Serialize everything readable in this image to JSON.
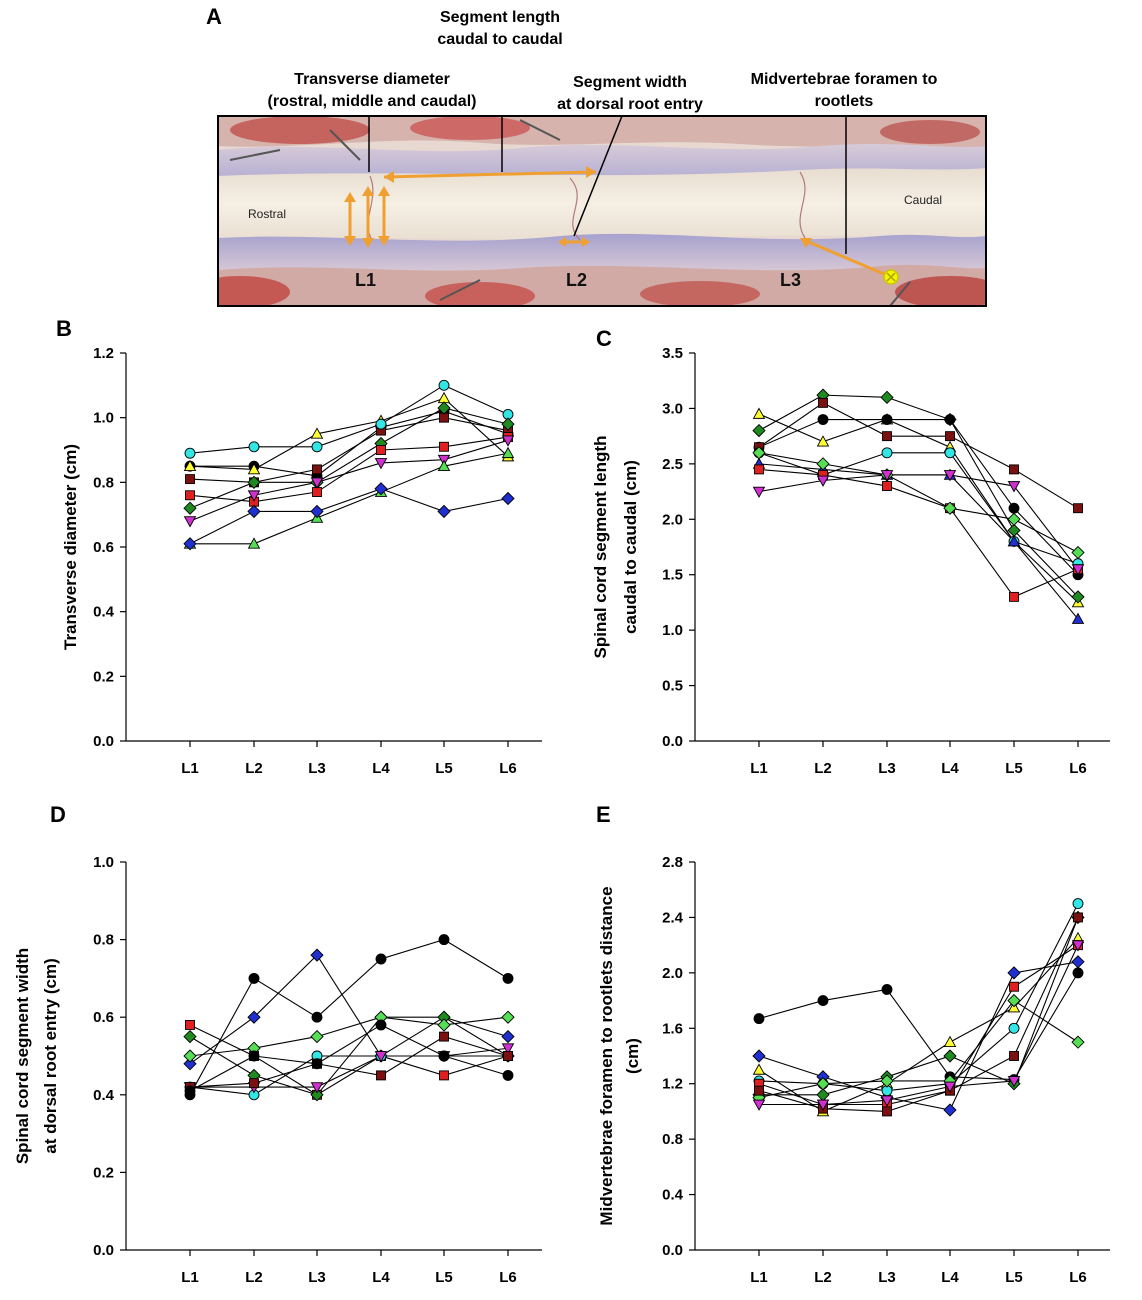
{
  "panel_a": {
    "letter": "A",
    "annotations": [
      {
        "lines": [
          "Transverse diameter",
          "(rostral, middle and caudal)"
        ]
      },
      {
        "lines": [
          "Segment length",
          "caudal to caudal"
        ]
      },
      {
        "lines": [
          "Segment width",
          "at dorsal root entry"
        ]
      },
      {
        "lines": [
          "Midvertebrae foramen to",
          "rootlets"
        ]
      }
    ],
    "photo_labels": {
      "rostral": "Rostral",
      "caudal": "Caudal"
    },
    "levels": [
      "L1",
      "L2",
      "L3"
    ],
    "colors": {
      "arrow": "#f0a030",
      "marker": "#f4f400",
      "cord": "#f2eadc",
      "dura": "#b9b4d8",
      "tissue": "#c23a3a"
    }
  },
  "chart_data": [
    {
      "panel": "B",
      "type": "line",
      "categories": [
        "L1",
        "L2",
        "L3",
        "L4",
        "L5",
        "L6"
      ],
      "ylabel": "Transverse diameter (cm)",
      "ylim": [
        0,
        1.2
      ],
      "yticks": [
        "0.0",
        "0.2",
        "0.4",
        "0.6",
        "0.8",
        "1.0",
        "1.2"
      ],
      "series": [
        {
          "name": "S1",
          "marker": "circle",
          "color": "#000000",
          "values": [
            0.85,
            0.85,
            0.82,
            0.97,
            1.02,
            0.95
          ]
        },
        {
          "name": "S2",
          "marker": "square",
          "color": "#7a1010",
          "values": [
            0.81,
            0.8,
            0.84,
            0.96,
            1.0,
            0.96
          ]
        },
        {
          "name": "S3",
          "marker": "triangle-up",
          "color": "#ffff33",
          "values": [
            0.85,
            0.84,
            0.95,
            0.99,
            1.06,
            0.88
          ]
        },
        {
          "name": "S4",
          "marker": "circle",
          "color": "#33e6e6",
          "values": [
            0.89,
            0.91,
            0.91,
            0.98,
            1.1,
            1.01
          ]
        },
        {
          "name": "S5",
          "marker": "diamond",
          "color": "#1f8a1f",
          "values": [
            0.72,
            0.8,
            0.8,
            0.92,
            1.03,
            0.98
          ]
        },
        {
          "name": "S6",
          "marker": "square",
          "color": "#e02020",
          "values": [
            0.76,
            0.74,
            0.77,
            0.9,
            0.91,
            0.94
          ]
        },
        {
          "name": "S7",
          "marker": "triangle-down",
          "color": "#d030d0",
          "values": [
            0.68,
            0.76,
            0.8,
            0.86,
            0.87,
            0.93
          ]
        },
        {
          "name": "S8",
          "marker": "triangle-up",
          "color": "#55dd55",
          "values": [
            0.61,
            0.61,
            0.69,
            0.77,
            0.85,
            0.89
          ]
        },
        {
          "name": "S9",
          "marker": "diamond",
          "color": "#2030d0",
          "values": [
            0.61,
            0.71,
            0.71,
            0.78,
            0.71,
            0.75
          ]
        }
      ]
    },
    {
      "panel": "C",
      "type": "line",
      "categories": [
        "L1",
        "L2",
        "L3",
        "L4",
        "L5",
        "L6"
      ],
      "ylabel": [
        "Spinal cord segment length",
        "caudal to caudal (cm)"
      ],
      "ylim": [
        0,
        3.5
      ],
      "yticks": [
        "0.0",
        "0.5",
        "1.0",
        "1.5",
        "2.0",
        "2.5",
        "3.0",
        "3.5"
      ],
      "series": [
        {
          "name": "S1",
          "marker": "triangle-up",
          "color": "#ffff33",
          "values": [
            2.95,
            2.7,
            2.9,
            2.65,
            1.8,
            1.25
          ]
        },
        {
          "name": "S2",
          "marker": "diamond",
          "color": "#1f8a1f",
          "values": [
            2.8,
            3.12,
            3.1,
            2.9,
            1.9,
            1.3
          ]
        },
        {
          "name": "S3",
          "marker": "circle",
          "color": "#000000",
          "values": [
            2.65,
            2.9,
            2.9,
            2.9,
            2.1,
            1.5
          ]
        },
        {
          "name": "S4",
          "marker": "square",
          "color": "#7a1010",
          "values": [
            2.65,
            3.05,
            2.75,
            2.75,
            2.45,
            2.1
          ]
        },
        {
          "name": "S5",
          "marker": "circle",
          "color": "#33e6e6",
          "values": [
            2.6,
            2.4,
            2.6,
            2.6,
            1.8,
            1.6
          ]
        },
        {
          "name": "S6",
          "marker": "triangle-up",
          "color": "#2030d0",
          "values": [
            2.5,
            2.45,
            2.4,
            2.4,
            1.8,
            1.1
          ]
        },
        {
          "name": "S7",
          "marker": "square",
          "color": "#e02020",
          "values": [
            2.45,
            2.4,
            2.3,
            2.1,
            1.3,
            1.55
          ]
        },
        {
          "name": "S8",
          "marker": "diamond",
          "color": "#55dd55",
          "values": [
            2.6,
            2.5,
            2.4,
            2.1,
            2.0,
            1.7
          ]
        },
        {
          "name": "S9",
          "marker": "triangle-down",
          "color": "#d030d0",
          "values": [
            2.25,
            2.35,
            2.4,
            2.4,
            2.3,
            1.55
          ]
        }
      ]
    },
    {
      "panel": "D",
      "type": "line",
      "categories": [
        "L1",
        "L2",
        "L3",
        "L4",
        "L5",
        "L6"
      ],
      "ylabel": [
        "Spinal cord segment width",
        "at dorsal root entry (cm)"
      ],
      "ylim": [
        0,
        1.0
      ],
      "yticks": [
        "0.0",
        "0.2",
        "0.4",
        "0.6",
        "0.8",
        "1.0"
      ],
      "series": [
        {
          "name": "S1",
          "marker": "circle",
          "color": "#000000",
          "values": [
            0.4,
            0.7,
            0.6,
            0.75,
            0.8,
            0.7
          ]
        },
        {
          "name": "S2",
          "marker": "diamond",
          "color": "#2030d0",
          "values": [
            0.48,
            0.6,
            0.76,
            0.5,
            0.6,
            0.55
          ]
        },
        {
          "name": "S3",
          "marker": "square",
          "color": "#e02020",
          "values": [
            0.58,
            0.5,
            0.4,
            0.5,
            0.45,
            0.5
          ]
        },
        {
          "name": "S4",
          "marker": "diamond",
          "color": "#1f8a1f",
          "values": [
            0.55,
            0.45,
            0.4,
            0.6,
            0.6,
            0.5
          ]
        },
        {
          "name": "S5",
          "marker": "diamond",
          "color": "#55dd55",
          "values": [
            0.5,
            0.52,
            0.55,
            0.6,
            0.58,
            0.6
          ]
        },
        {
          "name": "S6",
          "marker": "circle",
          "color": "#33e6e6",
          "values": [
            0.42,
            0.4,
            0.5,
            0.5,
            0.5,
            0.5
          ]
        },
        {
          "name": "S7",
          "marker": "triangle-down",
          "color": "#d030d0",
          "values": [
            0.42,
            0.42,
            0.42,
            0.5,
            0.5,
            0.52
          ]
        },
        {
          "name": "S8",
          "marker": "square",
          "color": "#7a1010",
          "values": [
            0.42,
            0.43,
            0.48,
            0.45,
            0.55,
            0.5
          ]
        },
        {
          "name": "S9",
          "marker": "circle",
          "color": "#000000",
          "values": [
            0.41,
            0.5,
            0.48,
            0.58,
            0.5,
            0.45
          ]
        }
      ]
    },
    {
      "panel": "E",
      "type": "line",
      "categories": [
        "L1",
        "L2",
        "L3",
        "L4",
        "L5",
        "L6"
      ],
      "ylabel": [
        "Midvertebrae foramen to rootlets distance",
        "(cm)"
      ],
      "ylim": [
        0,
        2.8
      ],
      "yticks": [
        "0.0",
        "0.4",
        "0.8",
        "1.2",
        "1.6",
        "2.0",
        "2.4",
        "2.8"
      ],
      "series": [
        {
          "name": "S1",
          "marker": "circle",
          "color": "#000000",
          "values": [
            1.67,
            1.8,
            1.88,
            1.25,
            1.23,
            2.0
          ]
        },
        {
          "name": "S2",
          "marker": "diamond",
          "color": "#2030d0",
          "values": [
            1.4,
            1.25,
            1.1,
            1.01,
            2.0,
            2.08
          ]
        },
        {
          "name": "S3",
          "marker": "triangle-up",
          "color": "#ffff33",
          "values": [
            1.3,
            1.0,
            1.2,
            1.5,
            1.75,
            2.25
          ]
        },
        {
          "name": "S4",
          "marker": "circle",
          "color": "#33e6e6",
          "values": [
            1.22,
            1.2,
            1.15,
            1.2,
            1.6,
            2.5
          ]
        },
        {
          "name": "S5",
          "marker": "square",
          "color": "#e02020",
          "values": [
            1.2,
            1.05,
            1.05,
            1.15,
            1.9,
            2.2
          ]
        },
        {
          "name": "S6",
          "marker": "diamond",
          "color": "#1f8a1f",
          "values": [
            1.12,
            1.12,
            1.25,
            1.4,
            1.2,
            2.4
          ]
        },
        {
          "name": "S7",
          "marker": "diamond",
          "color": "#55dd55",
          "values": [
            1.1,
            1.2,
            1.22,
            1.22,
            1.8,
            1.5
          ]
        },
        {
          "name": "S8",
          "marker": "square",
          "color": "#7a1010",
          "values": [
            1.15,
            1.02,
            1.0,
            1.15,
            1.4,
            2.4
          ]
        },
        {
          "name": "S9",
          "marker": "triangle-down",
          "color": "#d030d0",
          "values": [
            1.05,
            1.05,
            1.08,
            1.18,
            1.22,
            2.2
          ]
        }
      ]
    }
  ]
}
